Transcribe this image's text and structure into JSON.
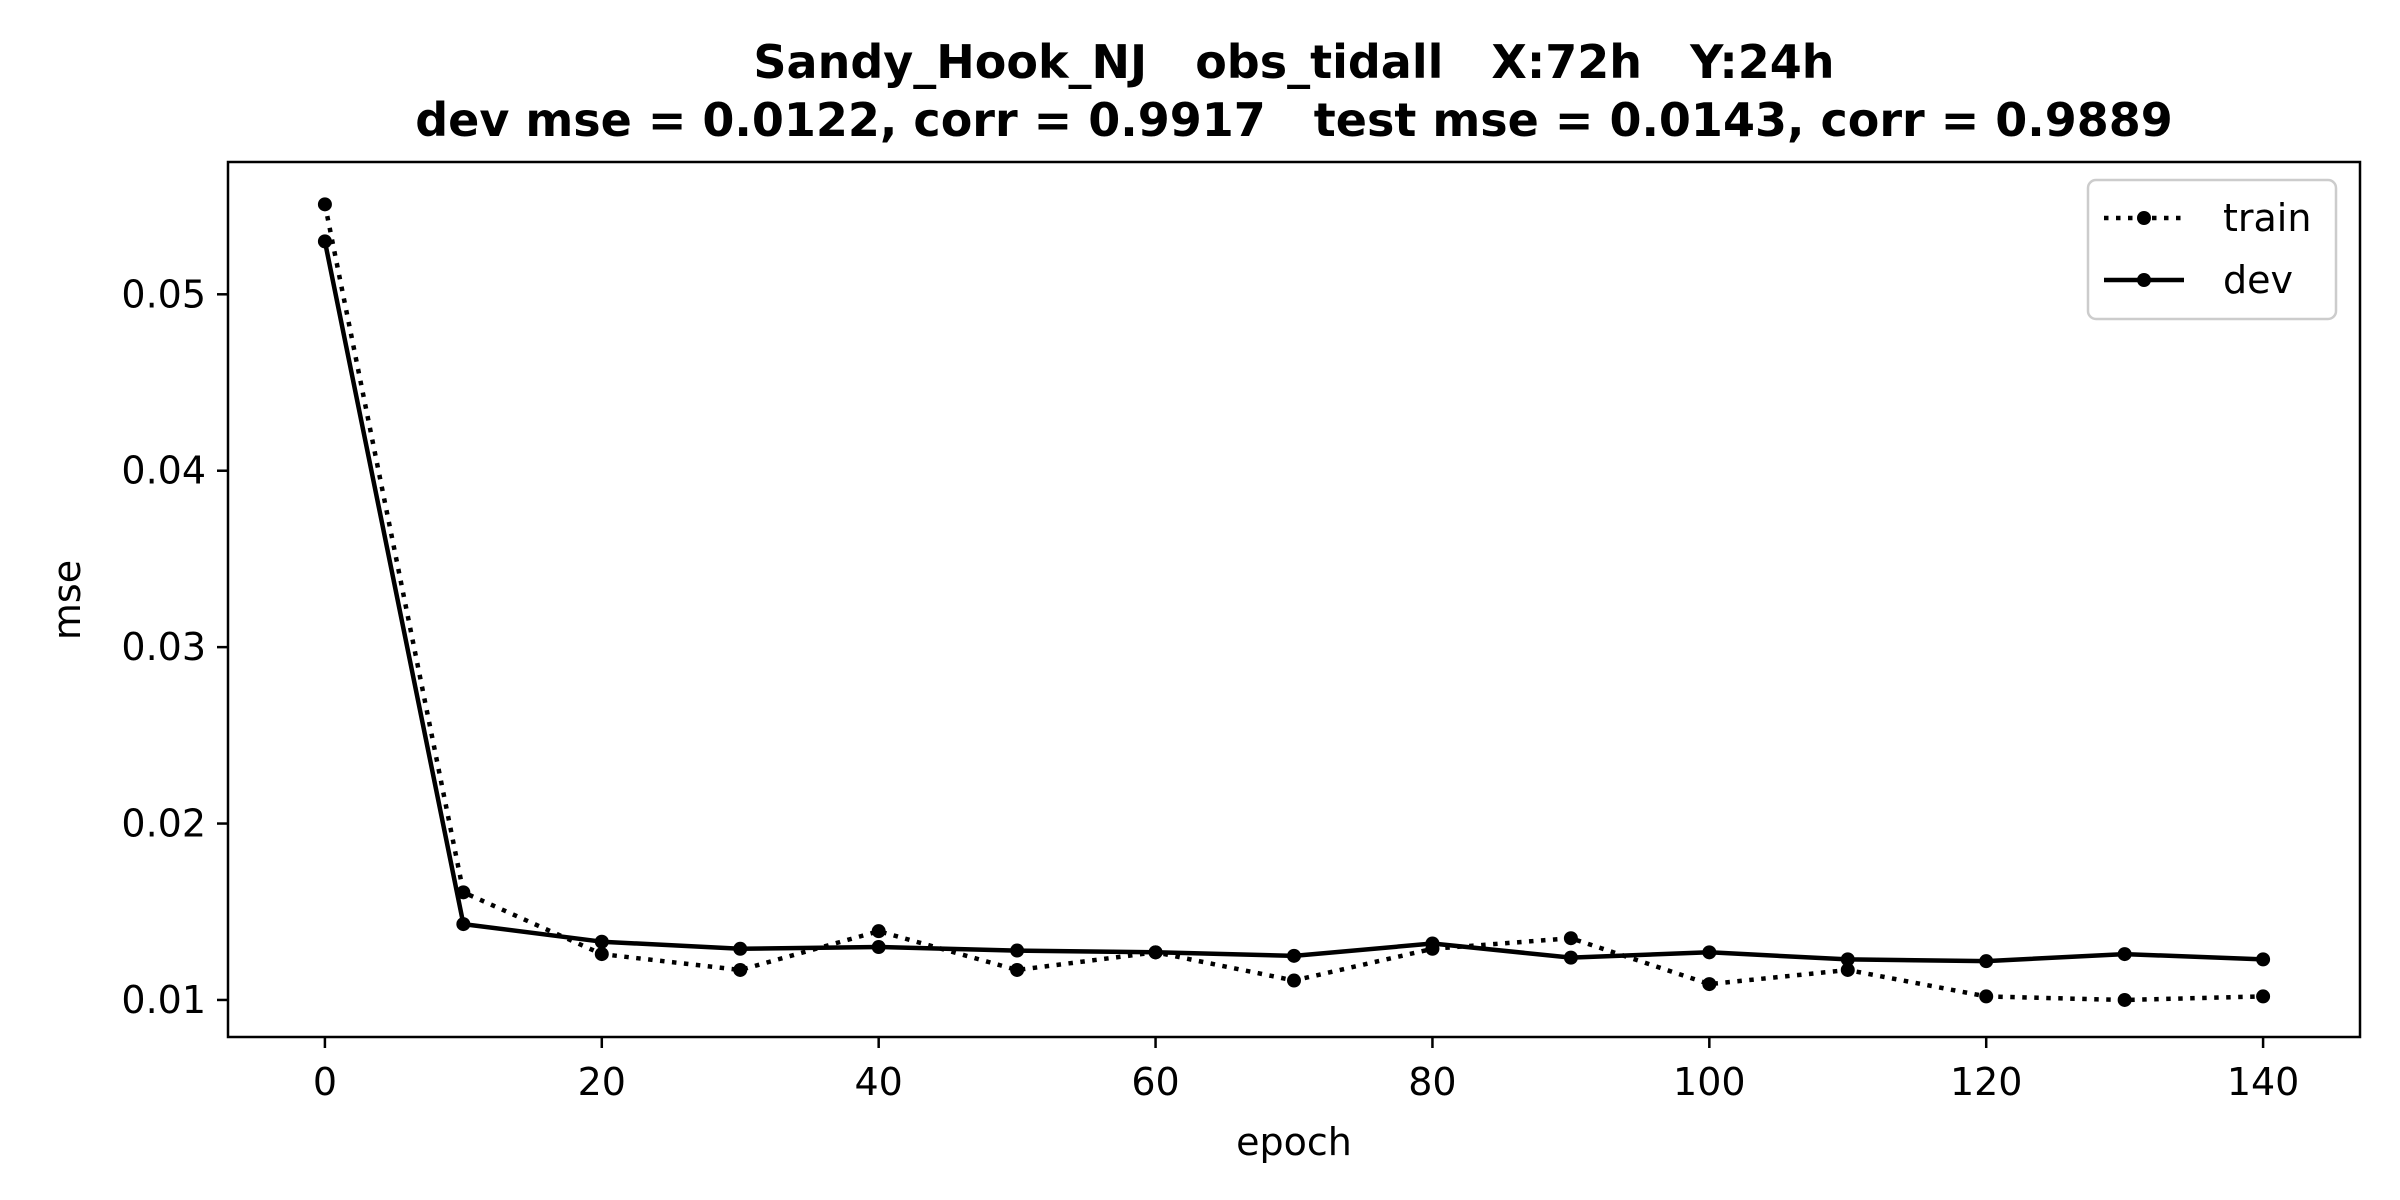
{
  "chart_data": {
    "type": "line",
    "title": "Sandy_Hook_NJ   obs_tidall   X:72h   Y:24h",
    "subtitle": "dev mse = 0.0122, corr = 0.9917   test mse = 0.0143, corr = 0.9889",
    "xlabel": "epoch",
    "ylabel": "mse",
    "xlim": [
      -7,
      147
    ],
    "ylim": [
      0.0079,
      0.0575
    ],
    "xticks": [
      0,
      20,
      40,
      60,
      80,
      100,
      120,
      140
    ],
    "xtick_labels": [
      "0",
      "20",
      "40",
      "60",
      "80",
      "100",
      "120",
      "140"
    ],
    "yticks": [
      0.01,
      0.02,
      0.03,
      0.04,
      0.05
    ],
    "ytick_labels": [
      "0.01",
      "0.02",
      "0.03",
      "0.04",
      "0.05"
    ],
    "grid": false,
    "legend_position": "top-right",
    "x": [
      0,
      10,
      20,
      30,
      40,
      50,
      60,
      70,
      80,
      90,
      100,
      110,
      120,
      130,
      140
    ],
    "series": [
      {
        "name": "train",
        "line_style": "dotted",
        "marker": "circle",
        "color": "#000000",
        "values": [
          0.0551,
          0.0161,
          0.0126,
          0.0117,
          0.0139,
          0.0117,
          0.0127,
          0.0111,
          0.0129,
          0.0135,
          0.0109,
          0.0117,
          0.0102,
          0.01,
          0.0102
        ]
      },
      {
        "name": "dev",
        "line_style": "solid",
        "marker": "circle",
        "color": "#000000",
        "values": [
          0.053,
          0.0143,
          0.0133,
          0.0129,
          0.013,
          0.0128,
          0.0127,
          0.0125,
          0.0132,
          0.0124,
          0.0127,
          0.0123,
          0.0122,
          0.0126,
          0.0123
        ]
      }
    ]
  }
}
